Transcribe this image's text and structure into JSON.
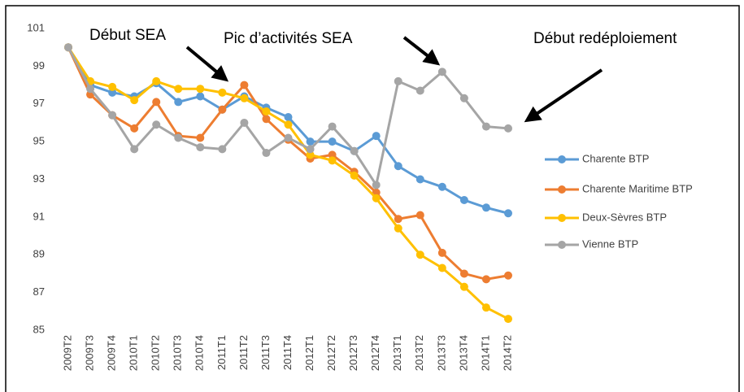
{
  "chart_data": {
    "type": "line",
    "categories": [
      "2009T2",
      "2009T3",
      "2009T4",
      "2010T1",
      "2010T2",
      "2010T3",
      "2010T4",
      "2011T1",
      "2011T2",
      "2011T3",
      "2011T4",
      "2012T1",
      "2012T2",
      "2012T3",
      "2012T4",
      "2013T1",
      "2013T2",
      "2013T3",
      "2013T4",
      "2014T1",
      "2014T2"
    ],
    "series": [
      {
        "name": "Charente BTP",
        "color": "#5b9bd5",
        "values": [
          100,
          98.0,
          97.6,
          97.4,
          98.1,
          97.1,
          97.4,
          96.7,
          97.4,
          96.8,
          96.3,
          95.0,
          95.0,
          94.5,
          95.3,
          93.7,
          93.0,
          92.6,
          91.9,
          91.5,
          91.2
        ]
      },
      {
        "name": "Charente Maritime BTP",
        "color": "#ed7d31",
        "values": [
          100,
          97.5,
          96.4,
          95.7,
          97.1,
          95.3,
          95.2,
          96.7,
          98.0,
          96.2,
          95.1,
          94.1,
          94.3,
          93.4,
          92.3,
          90.9,
          91.1,
          89.1,
          88.0,
          87.7,
          87.9
        ]
      },
      {
        "name": "Deux-Sèvres BTP",
        "color": "#ffc000",
        "values": [
          100,
          98.2,
          97.9,
          97.2,
          98.2,
          97.8,
          97.8,
          97.6,
          97.3,
          96.6,
          95.9,
          94.3,
          94.0,
          93.2,
          92.0,
          90.4,
          89.0,
          88.3,
          87.3,
          86.2,
          85.6
        ]
      },
      {
        "name": "Vienne BTP",
        "color": "#a5a5a5",
        "values": [
          100,
          97.8,
          96.4,
          94.6,
          95.9,
          95.2,
          94.7,
          94.6,
          96.0,
          94.4,
          95.2,
          94.6,
          95.8,
          94.5,
          92.7,
          98.2,
          97.7,
          98.7,
          97.3,
          95.8,
          95.7
        ]
      }
    ],
    "ylim": [
      85,
      101
    ],
    "yticks": [
      85,
      87,
      89,
      91,
      93,
      95,
      97,
      99,
      101
    ],
    "grid": false,
    "legend": "right",
    "annotations": [
      "Début SEA",
      "Pic d’activités SEA",
      "Début redéploiement"
    ]
  }
}
